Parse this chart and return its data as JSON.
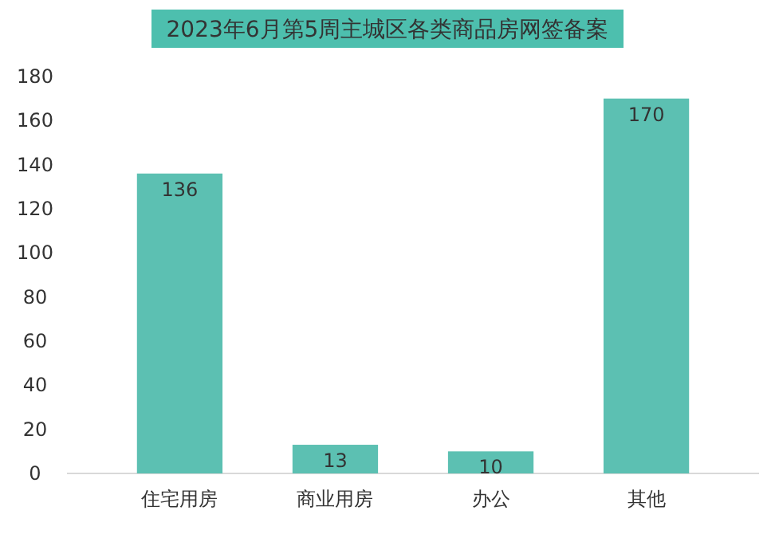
{
  "chart_data": {
    "type": "bar",
    "title": "2023年6月第5周主城区各类商品房网签备案",
    "categories": [
      "住宅用房",
      "商业用房",
      "办公",
      "其他"
    ],
    "values": [
      136,
      13,
      10,
      170
    ],
    "color": "#5cc0b2",
    "ylim": [
      0,
      180
    ],
    "yticks": [
      0,
      20,
      40,
      60,
      80,
      100,
      120,
      140,
      160,
      180
    ],
    "grid": false,
    "data_labels": true
  }
}
